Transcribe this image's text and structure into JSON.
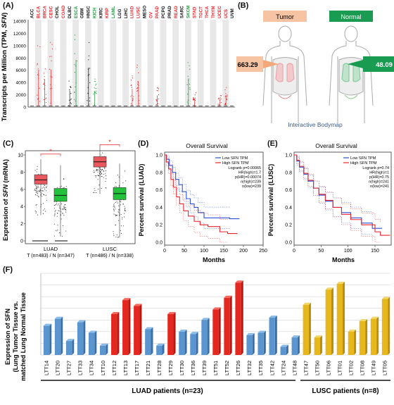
{
  "panels": {
    "a": "(A)",
    "b": "(B)",
    "c": "(C)",
    "d": "(D)",
    "e": "(E)",
    "f": "(F)"
  },
  "colors": {
    "red": "#e8242a",
    "green": "#1a9b3a",
    "blue": "#2f68c8",
    "yellow": "#e6b81e",
    "bar_blue": "#5b95cf",
    "bar_red": "#e4271f"
  },
  "panel_a": {
    "ylabel_pre": "Transcripts per Million (TPM, ",
    "ylabel_gene": "SFN",
    "ylabel_post": ")",
    "yticks": [
      "0",
      "2000",
      "4000",
      "6000",
      "8000",
      "10000",
      "12000",
      "14000"
    ],
    "cancers": [
      {
        "name": "ACC",
        "color": "#111111"
      },
      {
        "name": "BLCA",
        "color": "#e8242a"
      },
      {
        "name": "BRCA",
        "color": "#e8242a"
      },
      {
        "name": "CESC",
        "color": "#e8242a"
      },
      {
        "name": "CHOL",
        "color": "#111111"
      },
      {
        "name": "COAD",
        "color": "#e8242a"
      },
      {
        "name": "DLBC",
        "color": "#111111"
      },
      {
        "name": "ESCA",
        "color": "#1a9b3a"
      },
      {
        "name": "GBM",
        "color": "#111111"
      },
      {
        "name": "HNSC",
        "color": "#111111"
      },
      {
        "name": "KICH",
        "color": "#1a9b3a"
      },
      {
        "name": "KIRC",
        "color": "#111111"
      },
      {
        "name": "KIRP",
        "color": "#e8242a"
      },
      {
        "name": "LAML",
        "color": "#1a9b3a"
      },
      {
        "name": "LGG",
        "color": "#111111"
      },
      {
        "name": "LIHC",
        "color": "#111111"
      },
      {
        "name": "LUAD",
        "color": "#e8242a"
      },
      {
        "name": "LUSC",
        "color": "#e8242a"
      },
      {
        "name": "MESO",
        "color": "#111111"
      },
      {
        "name": "OV",
        "color": "#e8242a"
      },
      {
        "name": "PAAD",
        "color": "#e8242a"
      },
      {
        "name": "PCPG",
        "color": "#111111"
      },
      {
        "name": "PRAD",
        "color": "#111111"
      },
      {
        "name": "READ",
        "color": "#e8242a"
      },
      {
        "name": "SARC",
        "color": "#111111"
      },
      {
        "name": "SKCM",
        "color": "#1a9b3a"
      },
      {
        "name": "STAD",
        "color": "#e8242a"
      },
      {
        "name": "TGCT",
        "color": "#e8242a"
      },
      {
        "name": "THCA",
        "color": "#e8242a"
      },
      {
        "name": "THYM",
        "color": "#e8242a"
      },
      {
        "name": "UCEC",
        "color": "#e8242a"
      },
      {
        "name": "UCS",
        "color": "#e8242a"
      },
      {
        "name": "UVM",
        "color": "#111111"
      }
    ]
  },
  "panel_b": {
    "tumor_label": "Tumor",
    "normal_label": "Normal",
    "tumor_value": "663.29",
    "normal_value": "48.09",
    "caption": "Interactive Bodymap"
  },
  "panel_c": {
    "ylabel_pre": "Expression of ",
    "ylabel_gene": "SFN",
    "ylabel_post": " (mRNA)",
    "yticks": [
      "0",
      "2",
      "4",
      "6",
      "8",
      "10"
    ],
    "star": "*",
    "group1_name": "LUAD",
    "group1_n": "T (n=483) / N (n=347)",
    "group2_name": "LUSC",
    "group2_n": "T (n=486) / N (n=338)"
  },
  "panel_d": {
    "title": "Overall Survival",
    "ylabel": "Percent survival (LUAD)",
    "xlabel": "Months",
    "xticks": [
      "0",
      "50",
      "100",
      "150",
      "200",
      "250"
    ],
    "yticks": [
      "0.0",
      "0.2",
      "0.4",
      "0.6",
      "0.8",
      "1.0"
    ],
    "legend_low": "Low SFN TPM",
    "legend_high": "High SFN TPM",
    "stats": [
      "Logrank p=0.00065",
      "HR(high)=1.7",
      "p(HR)=0.00074",
      "n(high)=239",
      "n(low)=239"
    ]
  },
  "panel_e": {
    "title": "Overall Survival",
    "ylabel": "Percent survival (LUSC)",
    "xlabel": "Months",
    "xticks": [
      "0",
      "50",
      "100",
      "150"
    ],
    "yticks": [
      "0.0",
      "0.2",
      "0.4",
      "0.6",
      "0.8",
      "1.0"
    ],
    "legend_low": "Low SFN TPM",
    "legend_high": "High SFN TPM",
    "stats": [
      "Logrank p=0.74",
      "HR(high)=1",
      "p(HR)=0.75",
      "n(high)=241",
      "n(low)=241"
    ]
  },
  "panel_f": {
    "ylabel_1": "Expression of SFN",
    "ylabel_2": "(Lung Tumor Tissue vs.",
    "ylabel_3": "matched Lung Normal Tissue",
    "group1_label": "LUAD patients (n=23)",
    "group2_label": "LUSC patients (n=8)"
  },
  "chart_data": [
    {
      "type": "bar",
      "title": "",
      "ylabel": "Expression of SFN (Lung Tumor Tissue vs. matched Lung Normal Tissue)",
      "ylim": [
        0,
        7
      ],
      "grid": true,
      "categories": [
        "LTT14",
        "LTT20",
        "LTT27",
        "LTT33",
        "LTT34",
        "LTT10",
        "LTT12",
        "LTT13",
        "LTT17",
        "LTT21",
        "LTT28",
        "LTT29",
        "LTT30",
        "LTT36",
        "LTT39",
        "LTT51",
        "LTT52",
        "LTT26",
        "LTT32",
        "LTT35",
        "LTT42",
        "LTT24",
        "LTT48",
        "LTT47",
        "LTT50",
        "LTT06",
        "LTT01",
        "LTT02",
        "LTT08",
        "LTT49",
        "LTT05"
      ],
      "values": [
        2.5,
        3.1,
        1.2,
        2.8,
        1.9,
        0.8,
        3.5,
        4.7,
        4.2,
        2.2,
        0.8,
        3.5,
        2.0,
        1.8,
        3.0,
        3.9,
        4.9,
        6.2,
        1.7,
        1.9,
        3.2,
        0.7,
        1.5,
        4.3,
        1.5,
        5.6,
        6.1,
        2.0,
        2.9,
        3.1,
        4.8
      ],
      "bar_colors": [
        "blue",
        "blue",
        "blue",
        "blue",
        "blue",
        "blue",
        "red",
        "red",
        "red",
        "blue",
        "blue",
        "red",
        "blue",
        "blue",
        "blue",
        "red",
        "red",
        "red",
        "blue",
        "blue",
        "blue",
        "blue",
        "blue",
        "yellow",
        "yellow",
        "yellow",
        "yellow",
        "yellow",
        "yellow",
        "yellow",
        "yellow"
      ],
      "groups": [
        {
          "name": "LUAD patients (n=23)",
          "count": 23
        },
        {
          "name": "LUSC patients (n=8)",
          "count": 8
        }
      ]
    }
  ]
}
